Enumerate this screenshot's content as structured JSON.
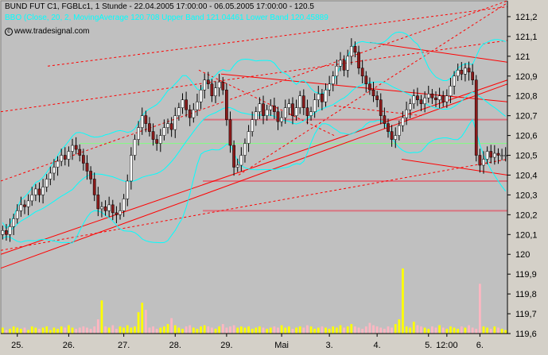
{
  "header": {
    "line1": "BUND FUT C1, FGBLc1, 1 Stunde - 22.04.2005 17:00:00 - 06.05.2005 17:00:00 - 120.5",
    "line2": "BBO (Close, 20, 2, MovingAverage 120.708 Upper Band 121.04461 Lower Band 120.45889",
    "watermark": "www.tradesignal.com",
    "watermark_icon": "copyright-icon"
  },
  "colors": {
    "background": "#c0c0c0",
    "frame": "#d4d0c8",
    "up_candle": "#ffffff",
    "down_candle": "#8b1a1a",
    "bollinger": "#00ffff",
    "trendline": "#ff0000",
    "support": "#e06070",
    "green_line": "#80ff80",
    "volume_up": "#ffff00",
    "volume_down": "#ffb6c1"
  },
  "chart_data": {
    "type": "candlestick",
    "ylim": [
      119.6,
      121.28
    ],
    "yticks": [
      "121,2",
      "121,1",
      "121",
      "120,9",
      "120,8",
      "120,7",
      "120,6",
      "120,5",
      "120,4",
      "120,3",
      "120,2",
      "120,1",
      "120",
      "119,9",
      "119,8",
      "119,7",
      "119,6"
    ],
    "ytick_values": [
      121.2,
      121.1,
      121.0,
      120.9,
      120.8,
      120.7,
      120.6,
      120.5,
      120.4,
      120.3,
      120.2,
      120.1,
      120.0,
      119.9,
      119.8,
      119.7,
      119.6
    ],
    "xticks": [
      {
        "label": "25.",
        "bar": 4
      },
      {
        "label": "26.",
        "bar": 18
      },
      {
        "label": "27.",
        "bar": 33
      },
      {
        "label": "28.",
        "bar": 47
      },
      {
        "label": "29.",
        "bar": 61
      },
      {
        "label": "Mai",
        "bar": 76
      },
      {
        "label": "3.",
        "bar": 89
      },
      {
        "label": "4.",
        "bar": 102
      },
      {
        "label": "5.",
        "bar": 116
      },
      {
        "label": "12:00",
        "bar": 121
      },
      {
        "label": "6.",
        "bar": 130
      }
    ],
    "bars_total": 138,
    "closes": [
      120.12,
      120.1,
      120.14,
      120.18,
      120.22,
      120.25,
      120.24,
      120.27,
      120.3,
      120.33,
      120.3,
      120.34,
      120.38,
      120.41,
      120.44,
      120.47,
      120.5,
      120.48,
      120.52,
      120.55,
      120.53,
      120.5,
      120.46,
      120.42,
      120.38,
      120.3,
      120.23,
      120.24,
      120.22,
      120.25,
      120.21,
      120.2,
      120.22,
      120.28,
      120.37,
      120.5,
      120.58,
      120.64,
      120.7,
      120.66,
      120.62,
      120.58,
      120.56,
      120.6,
      120.64,
      120.66,
      120.63,
      120.7,
      120.74,
      120.78,
      120.73,
      120.69,
      120.73,
      120.77,
      120.83,
      120.88,
      120.86,
      120.8,
      120.84,
      120.87,
      120.83,
      120.68,
      120.55,
      120.44,
      120.45,
      120.5,
      120.56,
      120.62,
      120.68,
      120.72,
      120.76,
      120.7,
      120.73,
      120.75,
      120.72,
      120.67,
      120.69,
      120.74,
      120.76,
      120.7,
      120.74,
      120.8,
      120.74,
      120.7,
      120.72,
      120.78,
      120.81,
      120.77,
      120.83,
      120.86,
      120.9,
      120.95,
      120.98,
      120.93,
      121.0,
      121.05,
      121.02,
      120.94,
      120.9,
      120.86,
      120.83,
      120.8,
      120.78,
      120.7,
      120.66,
      120.62,
      120.58,
      120.6,
      120.65,
      120.69,
      120.73,
      120.76,
      120.8,
      120.78,
      120.76,
      120.79,
      120.81,
      120.79,
      120.78,
      120.8,
      120.77,
      120.8,
      120.85,
      120.9,
      120.93,
      120.91,
      120.94,
      120.92,
      120.88,
      120.5,
      120.45,
      120.48,
      120.52,
      120.49,
      120.51,
      120.5,
      120.5,
      120.5
    ],
    "volume_max_bar": 0.55,
    "volumes": [
      0.05,
      0.03,
      0.04,
      0.06,
      0.05,
      0.04,
      0.05,
      0.03,
      0.06,
      0.05,
      0.04,
      0.05,
      0.06,
      0.03,
      0.05,
      0.04,
      0.06,
      0.05,
      0.07,
      0.05,
      0.04,
      0.05,
      0.06,
      0.05,
      0.04,
      0.06,
      0.12,
      0.28,
      0.06,
      0.05,
      0.07,
      0.04,
      0.06,
      0.05,
      0.07,
      0.05,
      0.06,
      0.18,
      0.26,
      0.2,
      0.05,
      0.06,
      0.04,
      0.05,
      0.06,
      0.08,
      0.13,
      0.07,
      0.05,
      0.04,
      0.06,
      0.07,
      0.05,
      0.04,
      0.06,
      0.07,
      0.06,
      0.05,
      0.04,
      0.06,
      0.08,
      0.05,
      0.06,
      0.07,
      0.05,
      0.06,
      0.05,
      0.06,
      0.04,
      0.05,
      0.06,
      0.05,
      0.04,
      0.05,
      0.06,
      0.05,
      0.07,
      0.05,
      0.06,
      0.04,
      0.05,
      0.06,
      0.05,
      0.07,
      0.06,
      0.04,
      0.05,
      0.06,
      0.05,
      0.04,
      0.06,
      0.05,
      0.07,
      0.05,
      0.06,
      0.08,
      0.06,
      0.05,
      0.04,
      0.06,
      0.09,
      0.07,
      0.06,
      0.05,
      0.04,
      0.06,
      0.05,
      0.08,
      0.12,
      0.55,
      0.06,
      0.05,
      0.1,
      0.07,
      0.06,
      0.05,
      0.04,
      0.06,
      0.05,
      0.07,
      0.05,
      0.04,
      0.06,
      0.05,
      0.04,
      0.06,
      0.05,
      0.07,
      0.05,
      0.04,
      0.42,
      0.06,
      0.05,
      0.04,
      0.06,
      0.05,
      0.04,
      0.03
    ]
  }
}
